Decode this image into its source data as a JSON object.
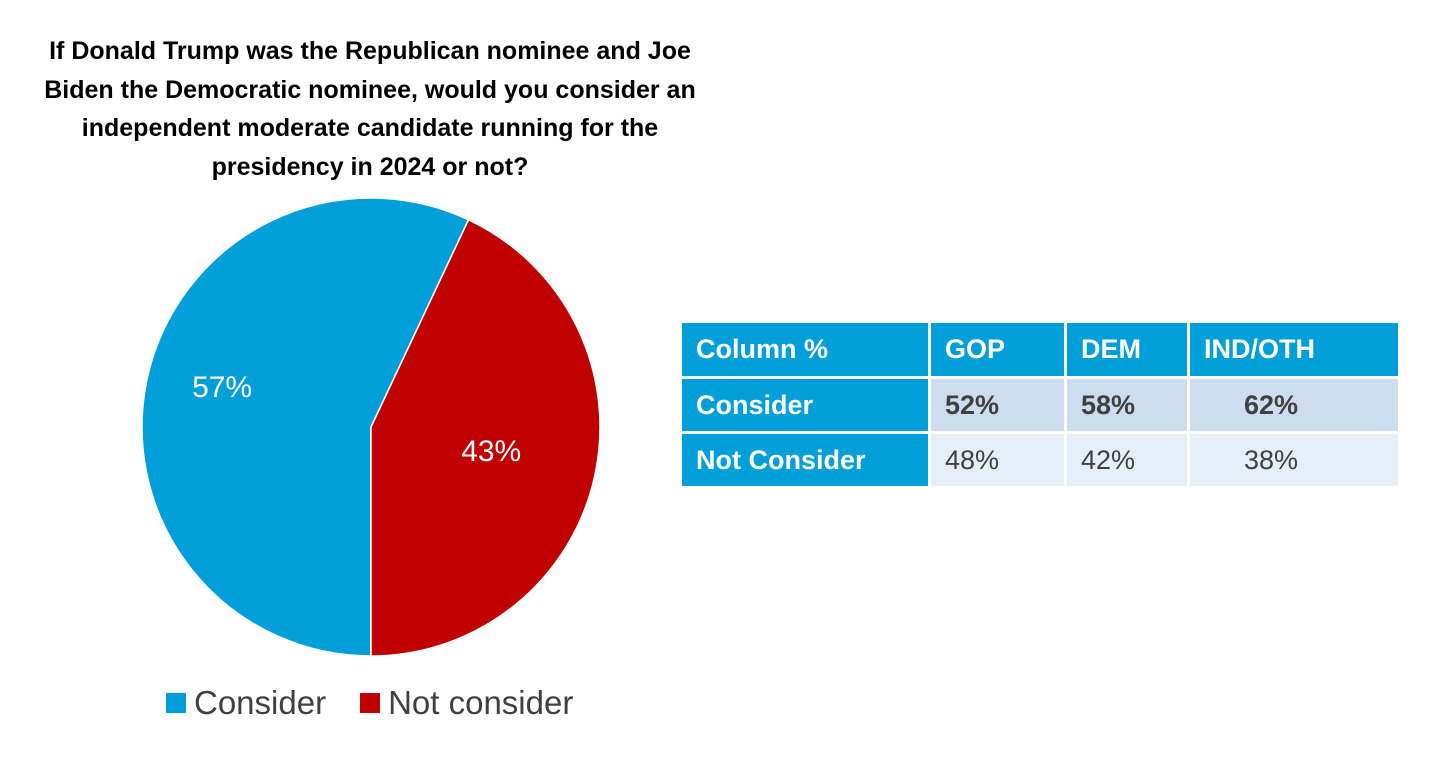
{
  "chart_data": [
    {
      "type": "pie",
      "title": "If Donald Trump was the Republican nominee and Joe Biden the Democratic nominee, would you consider an independent moderate candidate running for the presidency in 2024 or not?",
      "categories": [
        "Consider",
        "Not consider"
      ],
      "values": [
        57,
        43
      ],
      "labels": [
        "57%",
        "43%"
      ],
      "colors": [
        "#009fda",
        "#c00000"
      ],
      "legend": [
        "Consider",
        "Not consider"
      ],
      "legend_position": "bottom"
    },
    {
      "type": "table",
      "columns": [
        "Column %",
        "GOP",
        "DEM",
        "IND/OTH"
      ],
      "rows": [
        {
          "label": "Consider",
          "values": [
            "52%",
            "58%",
            "62%"
          ]
        },
        {
          "label": "Not Consider",
          "values": [
            "48%",
            "42%",
            "38%"
          ]
        }
      ]
    }
  ]
}
